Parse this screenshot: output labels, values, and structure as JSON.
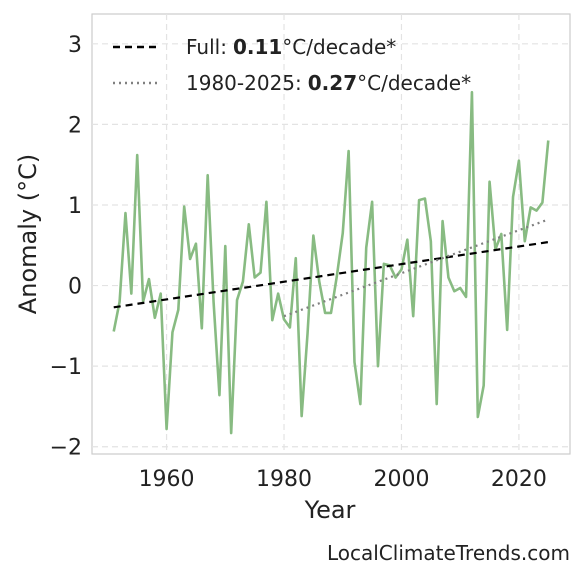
{
  "chart_data": {
    "type": "line",
    "xlabel": "Year",
    "ylabel": "Anomaly (°C)",
    "source": "LocalClimateTrends.com",
    "x": [
      1951,
      1952,
      1953,
      1954,
      1955,
      1956,
      1957,
      1958,
      1959,
      1960,
      1961,
      1962,
      1963,
      1964,
      1965,
      1966,
      1967,
      1968,
      1969,
      1970,
      1971,
      1972,
      1973,
      1974,
      1975,
      1976,
      1977,
      1978,
      1979,
      1980,
      1981,
      1982,
      1983,
      1984,
      1985,
      1986,
      1987,
      1988,
      1989,
      1990,
      1991,
      1992,
      1993,
      1994,
      1995,
      1996,
      1997,
      1998,
      1999,
      2000,
      2001,
      2002,
      2003,
      2004,
      2005,
      2006,
      2007,
      2008,
      2009,
      2010,
      2011,
      2012,
      2013,
      2014,
      2015,
      2016,
      2017,
      2018,
      2019,
      2020,
      2021,
      2022,
      2023,
      2024,
      2025
    ],
    "series": [
      {
        "color": "#88bb82",
        "values": [
          -0.57,
          -0.2,
          0.9,
          -0.1,
          1.62,
          -0.2,
          0.08,
          -0.4,
          -0.1,
          -1.78,
          -0.58,
          -0.3,
          0.98,
          0.33,
          0.52,
          -0.53,
          1.37,
          -0.2,
          -1.36,
          0.49,
          -1.83,
          -0.18,
          0.05,
          0.76,
          0.1,
          0.16,
          1.04,
          -0.43,
          -0.1,
          -0.42,
          -0.52,
          0.34,
          -1.62,
          -0.6,
          0.62,
          0.05,
          -0.34,
          -0.34,
          0.12,
          0.65,
          1.67,
          -0.95,
          -1.47,
          0.47,
          1.04,
          -1.0,
          0.27,
          0.25,
          0.1,
          0.2,
          0.57,
          -0.38,
          1.06,
          1.08,
          0.55,
          -1.47,
          0.8,
          0.1,
          -0.07,
          -0.03,
          -0.14,
          2.4,
          -1.63,
          -1.24,
          1.29,
          0.45,
          0.64,
          -0.55,
          1.1,
          1.55,
          0.55,
          0.97,
          0.93,
          1.03,
          1.8
        ]
      },
      {
        "name": "Full:",
        "rate_label": "0.11",
        "rate_unit": "°C/decade*",
        "color": "#000000",
        "dash": "7,5",
        "x": [
          1951,
          2025
        ],
        "values": [
          -0.27,
          0.54
        ]
      },
      {
        "name": "1980-2025:",
        "rate_label": "0.27",
        "rate_unit": "°C/decade*",
        "color": "#808080",
        "dash": "2,4",
        "x": [
          1980,
          2025
        ],
        "values": [
          -0.38,
          0.82
        ]
      }
    ],
    "xlim": [
      1947.3,
      2028.7
    ],
    "xticks": [
      1960,
      1980,
      2000,
      2020
    ],
    "ylim": [
      -2.09,
      3.37
    ],
    "yticks": [
      {
        "value": -2,
        "label": "−2"
      },
      {
        "value": -1,
        "label": "−1"
      },
      0,
      1,
      2,
      3
    ],
    "grid": true
  }
}
